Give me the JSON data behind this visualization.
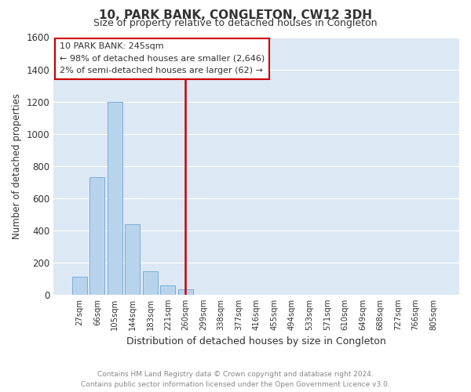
{
  "title": "10, PARK BANK, CONGLETON, CW12 3DH",
  "subtitle": "Size of property relative to detached houses in Congleton",
  "xlabel": "Distribution of detached houses by size in Congleton",
  "ylabel": "Number of detached properties",
  "footer_line1": "Contains HM Land Registry data © Crown copyright and database right 2024.",
  "footer_line2": "Contains public sector information licensed under the Open Government Licence v3.0.",
  "bar_labels": [
    "27sqm",
    "66sqm",
    "105sqm",
    "144sqm",
    "183sqm",
    "221sqm",
    "260sqm",
    "299sqm",
    "338sqm",
    "377sqm",
    "416sqm",
    "455sqm",
    "494sqm",
    "533sqm",
    "571sqm",
    "610sqm",
    "649sqm",
    "688sqm",
    "727sqm",
    "766sqm",
    "805sqm"
  ],
  "bar_values": [
    110,
    730,
    1200,
    440,
    145,
    60,
    35,
    0,
    0,
    0,
    0,
    0,
    0,
    0,
    0,
    0,
    0,
    0,
    0,
    0,
    0
  ],
  "bar_color": "#b8d4ec",
  "bar_edge_color": "#7aadd4",
  "ylim": [
    0,
    1600
  ],
  "yticks": [
    0,
    200,
    400,
    600,
    800,
    1000,
    1200,
    1400,
    1600
  ],
  "vline_x": 6.0,
  "vline_color": "#cc0000",
  "annotation_title": "10 PARK BANK: 245sqm",
  "annotation_line1": "← 98% of detached houses are smaller (2,646)",
  "annotation_line2": "2% of semi-detached houses are larger (62) →",
  "annotation_box_color": "#cc0000",
  "background_color": "#ffffff",
  "plot_bg_color": "#dce8f4"
}
